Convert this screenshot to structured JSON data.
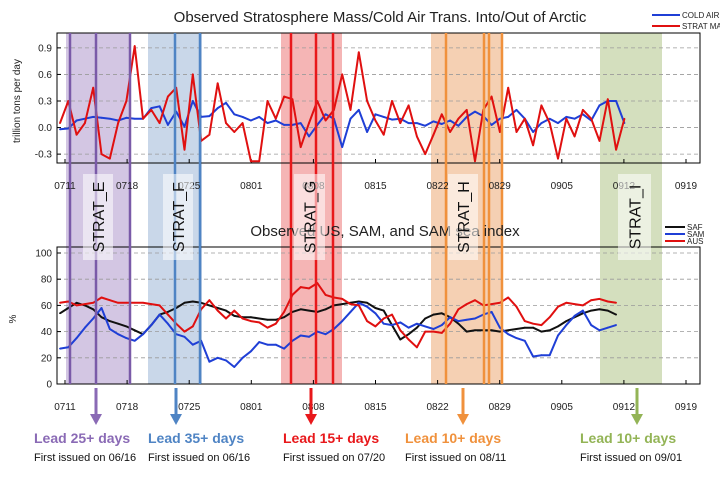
{
  "chart_data": [
    {
      "type": "line",
      "title": "Observed Stratosphere Mass/Cold Air Trans. Into/Out of Arctic",
      "ylabel": "trillion tons per day",
      "ylim": [
        -0.4,
        1.0
      ],
      "yticks": [
        "0.9",
        "0.6",
        "0.3",
        "0.0",
        "-0.3"
      ],
      "xticks": [
        "0711",
        "0718",
        "0725",
        "0801",
        "0808",
        "0815",
        "0822",
        "0829",
        "0905",
        "0912",
        "0919"
      ],
      "grid": "dashed horizontal",
      "legend_position": "top-right",
      "series": [
        {
          "name": "COLD AIR",
          "color": "#1f3fd6",
          "values": [
            -0.02,
            -0.01,
            0.08,
            0.1,
            0.12,
            0.11,
            0.1,
            0.08,
            0.11,
            0.1,
            0.1,
            0.22,
            0.24,
            0.03,
            0.18,
            0.01,
            0.3,
            0.12,
            0.13,
            0.22,
            0.28,
            0.15,
            0.12,
            0.08,
            0.12,
            0.05,
            0.08,
            0.03,
            0.03,
            0.05,
            -0.1,
            0.03,
            0.15,
            0.1,
            -0.22,
            0.1,
            0.2,
            -0.05,
            0.15,
            0.12,
            0.09,
            0.1,
            0.05,
            0.05,
            0.02,
            0.07,
            0.04,
            0.08,
            0.02,
            0.12,
            0.18,
            0.13,
            0.03,
            0.1,
            0.12,
            0.2,
            0.1,
            -0.05,
            0.05,
            0.1,
            0.05,
            0.12,
            0.1,
            0.15,
            0.08,
            0.25,
            0.3,
            0.3,
            0.05
          ]
        },
        {
          "name": "STRAT MASS",
          "color": "#e01010",
          "values": [
            0.05,
            0.3,
            -0.08,
            0.05,
            0.45,
            -0.3,
            -0.35,
            0.05,
            0.3,
            0.92,
            0.1,
            0.2,
            0.05,
            0.35,
            0.45,
            -0.25,
            0.6,
            -0.15,
            -0.08,
            0.5,
            0.05,
            -0.05,
            0.05,
            -0.38,
            -0.38,
            0.3,
            0.1,
            0.35,
            0.32,
            -0.22,
            0.05,
            0.3,
            0.08,
            0.2,
            0.6,
            0.2,
            0.85,
            0.3,
            0.08,
            -0.08,
            0.3,
            0.05,
            0.25,
            -0.1,
            -0.3,
            -0.08,
            0.15,
            -0.05,
            0.1,
            0.2,
            -0.38,
            0.2,
            0.35,
            -0.05,
            0.45,
            -0.05,
            0.1,
            -0.2,
            0.25,
            0.05,
            -0.35,
            0.1,
            -0.1,
            0.2,
            0.1,
            -0.15,
            0.32,
            -0.25,
            0.1
          ]
        }
      ]
    },
    {
      "type": "line",
      "title": "Observed US, SAM, and SAM sea index",
      "ylabel": "%",
      "ylim": [
        0,
        100
      ],
      "yticks": [
        "0",
        "20",
        "40",
        "60",
        "80",
        "100"
      ],
      "xticks": [
        "0711",
        "0718",
        "0725",
        "0801",
        "0808",
        "0815",
        "0822",
        "0829",
        "0905",
        "0912",
        "0919"
      ],
      "grid": "dashed horizontal",
      "legend_position": "top-right",
      "series": [
        {
          "name": "SAF",
          "color": "#111111",
          "values": [
            54,
            58,
            62,
            60,
            57,
            51,
            48,
            46,
            44,
            41,
            38,
            45,
            53,
            55,
            58,
            62,
            63,
            62,
            60,
            58,
            56,
            52,
            51,
            51,
            50,
            49,
            49,
            51,
            55,
            57,
            56,
            55,
            57,
            60,
            61,
            62,
            63,
            62,
            58,
            56,
            45,
            34,
            38,
            43,
            50,
            53,
            54,
            51,
            46,
            40,
            41,
            41,
            41,
            40,
            41,
            42,
            43,
            43,
            40,
            41,
            44,
            48,
            51,
            54,
            56,
            57,
            56,
            53
          ]
        },
        {
          "name": "SAM",
          "color": "#1f3fd6",
          "values": [
            27,
            28,
            35,
            43,
            50,
            58,
            42,
            38,
            35,
            33,
            38,
            45,
            53,
            46,
            38,
            36,
            30,
            33,
            17,
            20,
            18,
            13,
            20,
            25,
            32,
            30,
            30,
            27,
            33,
            37,
            36,
            40,
            38,
            42,
            48,
            55,
            62,
            59,
            54,
            46,
            45,
            47,
            43,
            46,
            44,
            42,
            45,
            51,
            48,
            49,
            50,
            53,
            55,
            43,
            38,
            35,
            33,
            21,
            22,
            22,
            37,
            45,
            52,
            56,
            45,
            41,
            43,
            45
          ]
        },
        {
          "name": "AUS",
          "color": "#e01010",
          "values": [
            62,
            63,
            60,
            61,
            62,
            66,
            64,
            62,
            62,
            62,
            62,
            61,
            60,
            53,
            46,
            40,
            44,
            57,
            64,
            56,
            50,
            56,
            50,
            48,
            47,
            43,
            46,
            55,
            68,
            74,
            73,
            77,
            68,
            66,
            65,
            61,
            60,
            48,
            44,
            50,
            53,
            41,
            34,
            28,
            40,
            40,
            39,
            46,
            57,
            61,
            64,
            60,
            61,
            62,
            66,
            59,
            48,
            46,
            45,
            51,
            59,
            62,
            61,
            60,
            64,
            65,
            63,
            62
          ]
        }
      ]
    }
  ],
  "strat_events": [
    {
      "label": "STRAT_E",
      "lead": "Lead 25+ days",
      "issued": "First issued on 06/16",
      "color": "#8a6ab5"
    },
    {
      "label": "STRAT_F",
      "lead": "Lead 35+ days",
      "issued": "First issued on 06/16",
      "color": "#4f84c4"
    },
    {
      "label": "STRAT_G",
      "lead": "Lead 15+ days",
      "issued": "First issued on 07/20",
      "color": "#e8181b"
    },
    {
      "label": "STRAT_H",
      "lead": "Lead 10+ days",
      "issued": "First issued on 08/11",
      "color": "#f0913c"
    },
    {
      "label": "STRAT_I",
      "lead": "Lead 10+ days",
      "issued": "First issued on 09/01",
      "color": "#93b456"
    }
  ]
}
